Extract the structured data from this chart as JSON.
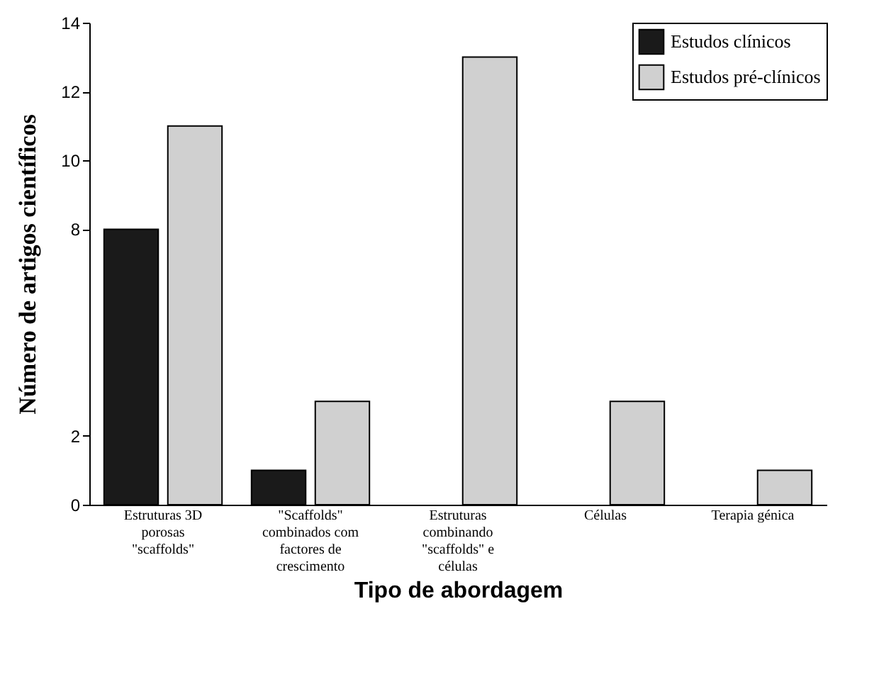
{
  "chart_data": {
    "type": "bar",
    "xlabel": "Tipo de abordagem",
    "ylabel": "Número de artigos científicos",
    "categories": [
      "Estruturas 3D porosas \"scaffolds\"",
      "\"Scaffolds\" combinados com factores de crescimento",
      "Estruturas combinando \"scaffolds\" e células",
      "Células",
      "Terapia génica"
    ],
    "series": [
      {
        "name": "Estudos clínicos",
        "color": "#1a1a1a",
        "values": [
          8,
          1,
          null,
          null,
          null
        ]
      },
      {
        "name": "Estudos pré-clínicos",
        "color": "#d0d0d0",
        "values": [
          11,
          3,
          13,
          3,
          1
        ]
      }
    ],
    "ylim": [
      0,
      14
    ],
    "yticks": [
      0,
      2,
      8,
      10,
      12,
      14
    ],
    "grid": false,
    "legend": "top right"
  }
}
